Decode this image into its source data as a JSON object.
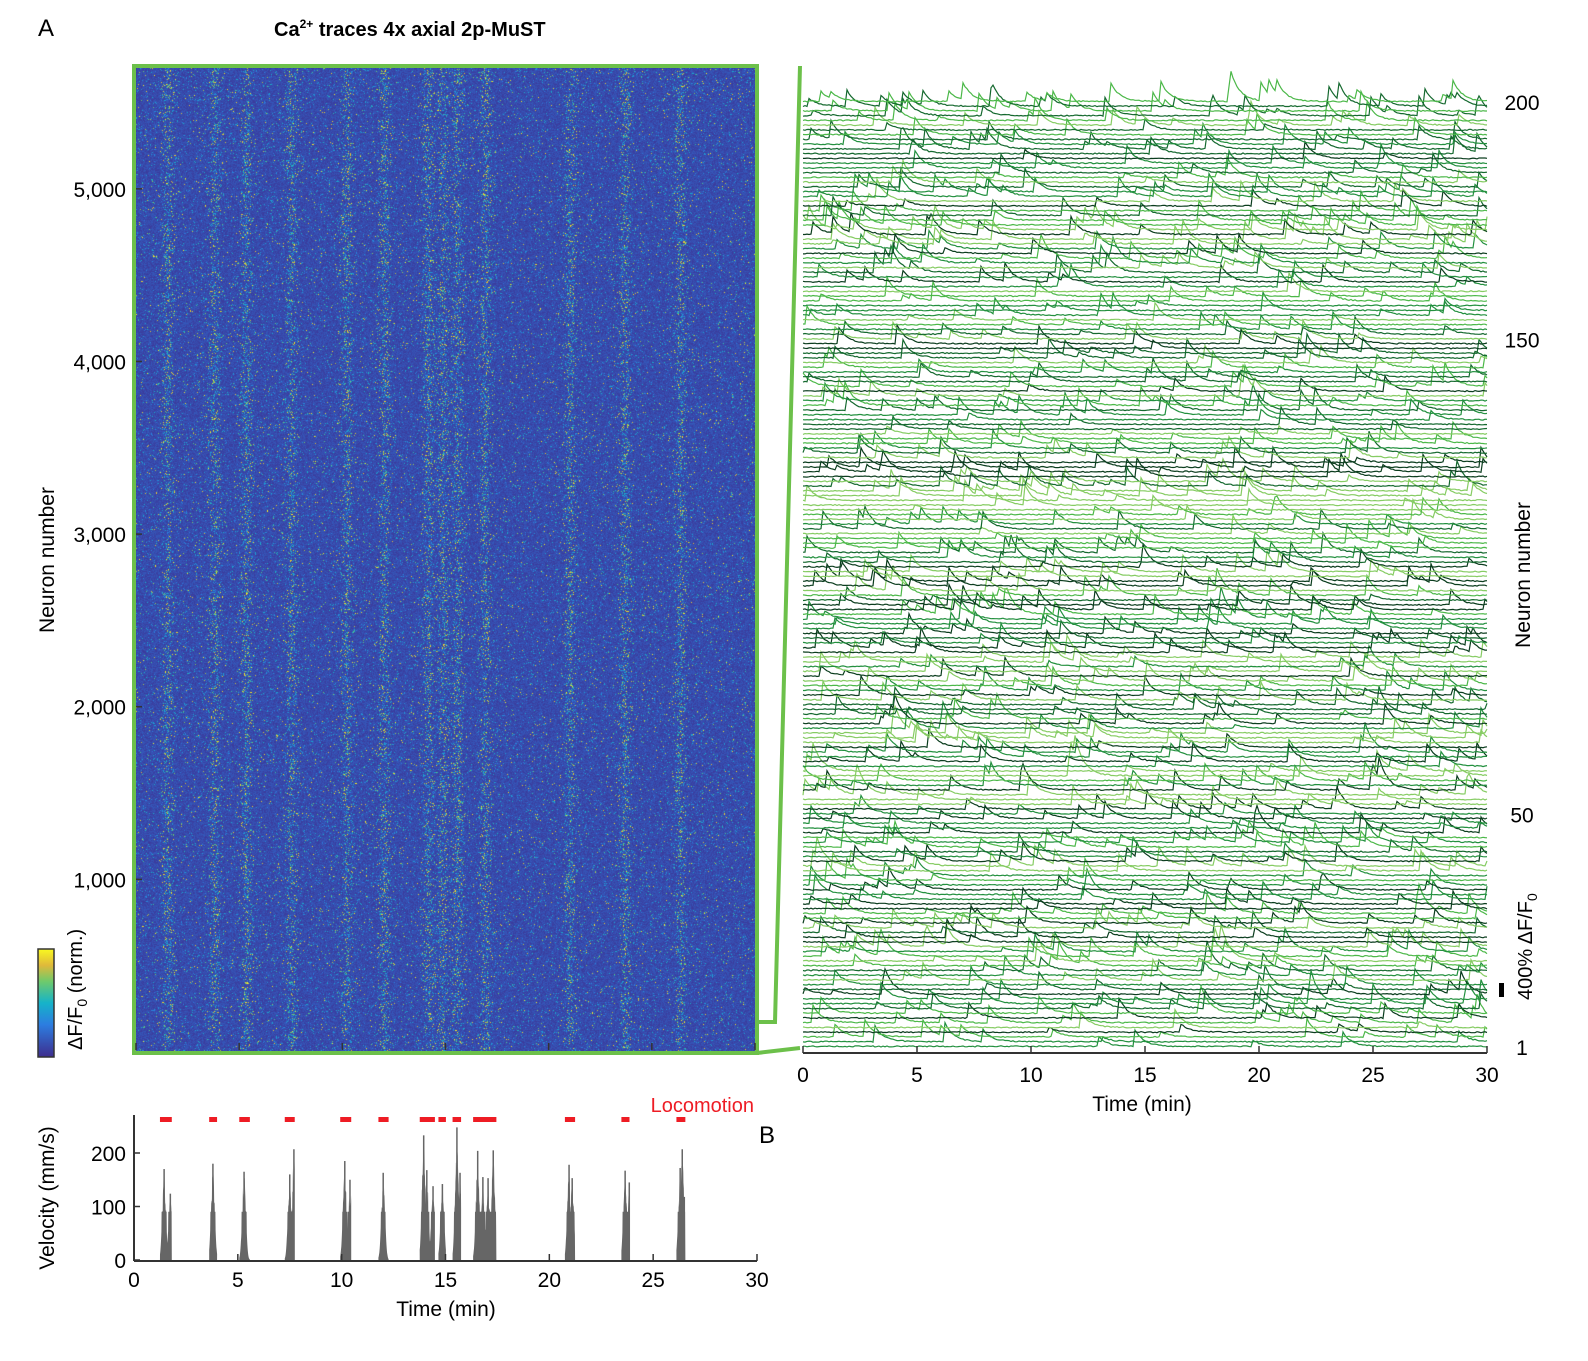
{
  "panel_labels": {
    "a": "A",
    "b": "B"
  },
  "title_parts": {
    "pre": "Ca",
    "sup": "2+",
    "post": " traces 4x axial 2p-MuST"
  },
  "colors": {
    "frame_green": "#6cc04a",
    "locomotion_red": "#ee1c24",
    "velocity_gray": "#666666",
    "trace_greens": [
      "#0b3d1e",
      "#15692f",
      "#23903f",
      "#4cb849",
      "#86cc63"
    ]
  },
  "chart_data": [
    {
      "type": "heatmap",
      "ylabel": "Neuron number",
      "yticks": [
        1000,
        2000,
        3000,
        4000,
        5000
      ],
      "ytick_labels": [
        "1,000",
        "2,000",
        "3,000",
        "4,000",
        "5,000"
      ],
      "ylim": [
        0,
        5700
      ],
      "xlim": [
        0,
        30
      ],
      "xticks": [
        0,
        5,
        10,
        15,
        20,
        25,
        30
      ],
      "colormap": "parula",
      "colorbar_label": {
        "pre": "ΔF/F",
        "sub": "0",
        "post": " (norm.)"
      }
    },
    {
      "type": "line",
      "xlabel": "Time (min)",
      "ylabel": "Neuron number",
      "xlim": [
        0,
        30
      ],
      "xticks": [
        0,
        5,
        10,
        15,
        20,
        25,
        30
      ],
      "ylim": [
        1,
        200
      ],
      "yticks": [
        1,
        50,
        150,
        200
      ],
      "ytick_labels": [
        "1",
        "50",
        "150",
        "200"
      ],
      "scale_bar_label": {
        "pre": "400% ΔF/F",
        "sub": "0"
      },
      "n_traces": 200
    },
    {
      "type": "area",
      "xlabel": "Time (min)",
      "ylabel": "Velocity (mm/s)",
      "xlim": [
        0,
        30
      ],
      "xticks": [
        0,
        5,
        10,
        15,
        20,
        25,
        30
      ],
      "ylim": [
        0,
        270
      ],
      "yticks": [
        0,
        100,
        200
      ],
      "legend": "Locomotion",
      "locomotion_intervals": [
        [
          1.25,
          1.82
        ],
        [
          3.62,
          4.0
        ],
        [
          5.07,
          5.58
        ],
        [
          7.26,
          7.74
        ],
        [
          9.93,
          10.46
        ],
        [
          11.77,
          12.26
        ],
        [
          13.76,
          14.49
        ],
        [
          14.66,
          15.02
        ],
        [
          15.34,
          15.75
        ],
        [
          16.33,
          17.45
        ],
        [
          20.75,
          21.24
        ],
        [
          23.47,
          23.86
        ],
        [
          26.12,
          26.55
        ]
      ],
      "velocity_peaks": [
        [
          1.45,
          170
        ],
        [
          1.75,
          124
        ],
        [
          3.8,
          180
        ],
        [
          5.3,
          165
        ],
        [
          7.5,
          160
        ],
        [
          7.7,
          207
        ],
        [
          10.15,
          185
        ],
        [
          10.4,
          150
        ],
        [
          12.0,
          163
        ],
        [
          13.95,
          233
        ],
        [
          14.1,
          168
        ],
        [
          14.4,
          138
        ],
        [
          14.85,
          142
        ],
        [
          15.55,
          248
        ],
        [
          15.7,
          163
        ],
        [
          16.55,
          204
        ],
        [
          16.8,
          155
        ],
        [
          17.05,
          153
        ],
        [
          17.3,
          205
        ],
        [
          20.95,
          178
        ],
        [
          21.1,
          153
        ],
        [
          23.65,
          167
        ],
        [
          23.85,
          145
        ],
        [
          26.3,
          172
        ],
        [
          26.4,
          207
        ],
        [
          26.5,
          118
        ]
      ]
    }
  ]
}
